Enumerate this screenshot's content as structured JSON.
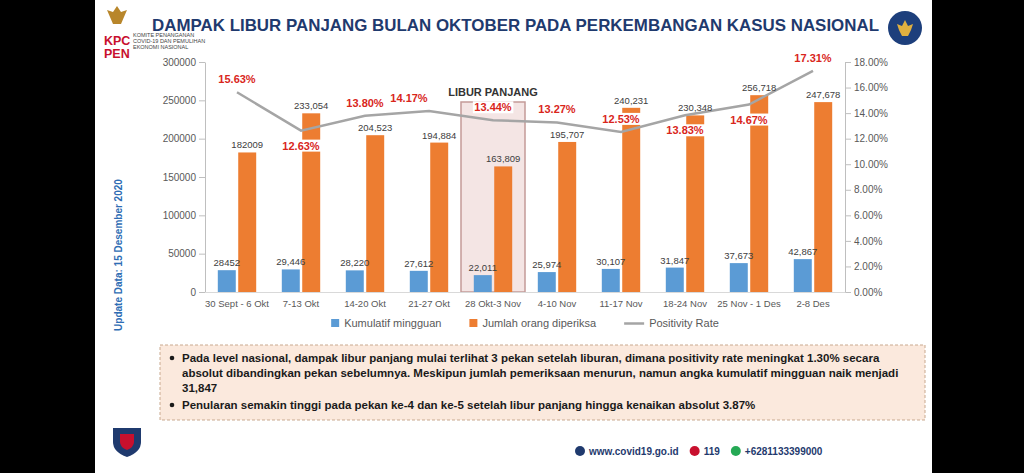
{
  "header": {
    "logo_text": [
      "KPC",
      "PEN"
    ],
    "org_name": [
      "KOMITE PENANGANAN",
      "COVID-19 DAN PEMULIHAN",
      "EKONOMI NASIONAL"
    ]
  },
  "update_note": "Update Data: 15 Desember 2020",
  "chart_data": {
    "type": "bar",
    "title": "DAMPAK LIBUR PANJANG BULAN OKTOBER PADA PERKEMBANGAN KASUS NASIONAL",
    "categories": [
      "30 Sept - 6 Okt",
      "7-13 Okt",
      "14-20 Okt",
      "21-27 Okt",
      "28 Okt-3 Nov",
      "4-10 Nov",
      "11-17 Nov",
      "18-24 Nov",
      "25 Nov - 1 Des",
      "2-8 Des"
    ],
    "series": [
      {
        "name": "Kumulatif mingguan",
        "type": "bar",
        "color": "#5b9bd5",
        "values": [
          28452,
          29446,
          28220,
          27612,
          22011,
          25974,
          30107,
          31847,
          37673,
          42867
        ],
        "value_labels": [
          "28452",
          "29,446",
          "28,220",
          "27,612",
          "22,011",
          "25,974",
          "30,107",
          "31,847",
          "37,673",
          "42,867"
        ]
      },
      {
        "name": "Jumlah orang diperiksa",
        "type": "bar",
        "color": "#ed7d31",
        "values": [
          182009,
          233054,
          204523,
          194884,
          163809,
          195707,
          240231,
          230348,
          256718,
          247678
        ],
        "value_labels": [
          "182009",
          "233,054",
          "204,523",
          "194,884",
          "163,809",
          "195,707",
          "240,231",
          "230,348",
          "256,718",
          "247,678"
        ]
      },
      {
        "name": "Positivity Rate",
        "type": "line",
        "color": "#a5a5a5",
        "axis": "y2",
        "values": [
          15.63,
          12.63,
          13.8,
          14.17,
          13.44,
          13.27,
          12.53,
          13.83,
          14.67,
          17.31
        ],
        "value_labels": [
          "15.63%",
          "12.63%",
          "13.80%",
          "14.17%",
          "13.44%",
          "13.27%",
          "12.53%",
          "13.83%",
          "14.67%",
          "17.31%"
        ]
      }
    ],
    "ylim": [
      0,
      300000
    ],
    "yticks": [
      0,
      50000,
      100000,
      150000,
      200000,
      250000,
      300000
    ],
    "y2lim": [
      0,
      18
    ],
    "y2ticks": [
      {
        "value": 0,
        "label": "0.00%"
      },
      {
        "value": 2,
        "label": "2.00%"
      },
      {
        "value": 4,
        "label": "4.00%"
      },
      {
        "value": 6,
        "label": "6.00%"
      },
      {
        "value": 8,
        "label": "8.00%"
      },
      {
        "value": 10,
        "label": "10.00%"
      },
      {
        "value": 12,
        "label": "12.00%"
      },
      {
        "value": 14,
        "label": "14.00%"
      },
      {
        "value": 16,
        "label": "16.00%"
      },
      {
        "value": 18,
        "label": "18.00%"
      }
    ],
    "annotations": [
      {
        "text": "LIBUR PANJANG",
        "x": "28 Okt-3 Nov"
      }
    ],
    "grid": false,
    "legend": "bottom",
    "data_labels": true
  },
  "notes": [
    "Pada level nasional, dampak libur panjang mulai terlihat 3 pekan setelah liburan, dimana positivity rate meningkat 1.30% secara absolut dibandingkan pekan sebelumnya. Meskipun jumlah pemeriksaan menurun, namun angka kumulatif mingguan naik menjadi 31,847",
    "Penularan semakin tinggi pada pekan ke-4 dan ke-5 setelah libur panjang hingga kenaikan absolut 3.87%"
  ],
  "footer": {
    "website": "www.covid19.go.id",
    "hotline": "119",
    "whatsapp": "+6281133399000"
  }
}
